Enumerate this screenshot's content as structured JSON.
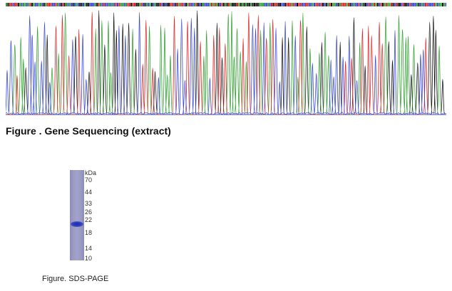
{
  "sequencing": {
    "caption": "Figure . Gene Sequencing (extract)",
    "trace_colors": {
      "A": "#2ca02c",
      "C": "#3344dd",
      "G": "#111111",
      "T": "#dd2222"
    }
  },
  "gel": {
    "caption": "Figure. SDS-PAGE",
    "unit_label": "kDa",
    "markers": [
      "70",
      "44",
      "33",
      "26",
      "22",
      "18",
      "14",
      "10"
    ],
    "band_color": "#1d2fb0"
  }
}
